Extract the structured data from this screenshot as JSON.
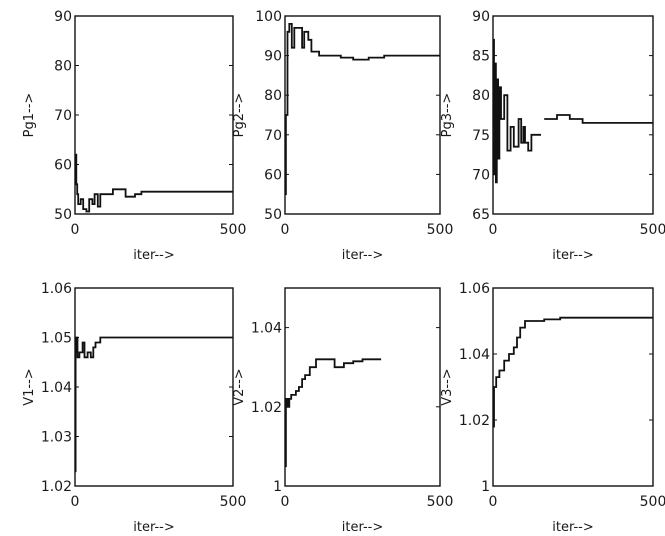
{
  "chart_data": [
    {
      "type": "line",
      "xlabel": "iter-->",
      "ylabel": "Pg1-->",
      "xlim": [
        0,
        500
      ],
      "ylim": [
        50,
        90
      ],
      "xticks": [
        0,
        500
      ],
      "yticks": [
        50,
        60,
        70,
        80,
        90
      ],
      "xtick_labels": [
        "0",
        "500"
      ],
      "ytick_labels": [
        "50",
        "60",
        "70",
        "80",
        "90"
      ],
      "grid": false,
      "series": [
        {
          "values": [
            [
              0,
              60
            ],
            [
              2,
              60
            ],
            [
              2,
              62
            ],
            [
              4,
              62
            ],
            [
              4,
              56
            ],
            [
              7,
              56
            ],
            [
              7,
              54
            ],
            [
              10,
              54
            ],
            [
              10,
              52
            ],
            [
              18,
              52
            ],
            [
              18,
              53
            ],
            [
              26,
              53
            ],
            [
              26,
              51
            ],
            [
              36,
              51
            ],
            [
              36,
              50.5
            ],
            [
              45,
              50.5
            ],
            [
              45,
              53
            ],
            [
              55,
              53
            ],
            [
              55,
              52
            ],
            [
              62,
              52
            ],
            [
              62,
              54
            ],
            [
              72,
              54
            ],
            [
              72,
              51.5
            ],
            [
              80,
              51.5
            ],
            [
              80,
              54
            ],
            [
              120,
              54
            ],
            [
              120,
              55
            ],
            [
              160,
              55
            ],
            [
              160,
              53.5
            ],
            [
              190,
              53.5
            ],
            [
              190,
              54
            ],
            [
              210,
              54
            ],
            [
              210,
              54.5
            ],
            [
              500,
              54.5
            ]
          ]
        }
      ]
    },
    {
      "type": "line",
      "xlabel": "iter-->",
      "ylabel": "Pg2-->",
      "xlim": [
        0,
        500
      ],
      "ylim": [
        50,
        100
      ],
      "xticks": [
        0,
        500
      ],
      "yticks": [
        50,
        60,
        70,
        80,
        90,
        100
      ],
      "xtick_labels": [
        "0",
        "500"
      ],
      "ytick_labels": [
        "50",
        "60",
        "70",
        "80",
        "90",
        "100"
      ],
      "grid": false,
      "series": [
        {
          "values": [
            [
              0,
              55
            ],
            [
              3,
              55
            ],
            [
              3,
              75
            ],
            [
              8,
              75
            ],
            [
              8,
              96
            ],
            [
              14,
              96
            ],
            [
              14,
              98
            ],
            [
              22,
              98
            ],
            [
              22,
              92
            ],
            [
              30,
              92
            ],
            [
              30,
              97
            ],
            [
              55,
              97
            ],
            [
              55,
              92
            ],
            [
              62,
              92
            ],
            [
              62,
              96
            ],
            [
              75,
              96
            ],
            [
              75,
              94
            ],
            [
              85,
              94
            ],
            [
              85,
              91
            ],
            [
              110,
              91
            ],
            [
              110,
              90
            ],
            [
              180,
              90
            ],
            [
              180,
              89.5
            ],
            [
              220,
              89.5
            ],
            [
              220,
              89
            ],
            [
              270,
              89
            ],
            [
              270,
              89.5
            ],
            [
              320,
              89.5
            ],
            [
              320,
              90
            ],
            [
              500,
              90
            ]
          ]
        }
      ]
    },
    {
      "type": "line",
      "xlabel": "iter-->",
      "ylabel": "Pg3-->",
      "xlim": [
        0,
        500
      ],
      "ylim": [
        65,
        90
      ],
      "xticks": [
        0,
        500
      ],
      "yticks": [
        65,
        70,
        75,
        80,
        85,
        90
      ],
      "xtick_labels": [
        "0",
        "500"
      ],
      "ytick_labels": [
        "65",
        "70",
        "75",
        "80",
        "85",
        "90"
      ],
      "grid": false,
      "series": [
        {
          "values": [
            [
              0,
              87
            ],
            [
              3,
              87
            ],
            [
              3,
              70
            ],
            [
              6,
              70
            ],
            [
              6,
              84
            ],
            [
              9,
              84
            ],
            [
              9,
              69
            ],
            [
              12,
              69
            ],
            [
              12,
              82
            ],
            [
              16,
              82
            ],
            [
              16,
              72
            ],
            [
              20,
              72
            ],
            [
              20,
              81
            ],
            [
              25,
              81
            ],
            [
              25,
              77
            ],
            [
              35,
              77
            ],
            [
              35,
              80
            ],
            [
              45,
              80
            ],
            [
              45,
              73
            ],
            [
              55,
              73
            ],
            [
              55,
              76
            ],
            [
              65,
              76
            ],
            [
              65,
              73.5
            ],
            [
              80,
              73.5
            ],
            [
              80,
              77
            ],
            [
              88,
              77
            ],
            [
              88,
              74
            ],
            [
              95,
              74
            ],
            [
              95,
              76
            ],
            [
              100,
              76
            ],
            [
              100,
              74
            ],
            [
              110,
              74
            ],
            [
              110,
              73
            ],
            [
              120,
              73
            ],
            [
              120,
              75
            ],
            [
              150,
              75
            ]
          ]
        },
        {
          "values": [
            [
              160,
              77
            ],
            [
              200,
              77
            ],
            [
              200,
              77.5
            ],
            [
              240,
              77.5
            ],
            [
              240,
              77
            ],
            [
              280,
              77
            ],
            [
              280,
              76.5
            ],
            [
              500,
              76.5
            ]
          ]
        }
      ]
    },
    {
      "type": "line",
      "xlabel": "iter-->",
      "ylabel": "V1-->",
      "xlim": [
        0,
        500
      ],
      "ylim": [
        1.02,
        1.06
      ],
      "xticks": [
        0,
        500
      ],
      "yticks": [
        1.02,
        1.03,
        1.04,
        1.05,
        1.06
      ],
      "xtick_labels": [
        "0",
        "500"
      ],
      "ytick_labels": [
        "1.02",
        "1.03",
        "1.04",
        "1.05",
        "1.06"
      ],
      "grid": false,
      "series": [
        {
          "values": [
            [
              0,
              1.023
            ],
            [
              2,
              1.023
            ],
            [
              2,
              1.047
            ],
            [
              4,
              1.047
            ],
            [
              4,
              1.05
            ],
            [
              8,
              1.05
            ],
            [
              8,
              1.046
            ],
            [
              14,
              1.046
            ],
            [
              14,
              1.047
            ],
            [
              24,
              1.047
            ],
            [
              24,
              1.049
            ],
            [
              30,
              1.049
            ],
            [
              30,
              1.046
            ],
            [
              40,
              1.046
            ],
            [
              40,
              1.047
            ],
            [
              50,
              1.047
            ],
            [
              50,
              1.046
            ],
            [
              58,
              1.046
            ],
            [
              58,
              1.048
            ],
            [
              65,
              1.048
            ],
            [
              65,
              1.049
            ],
            [
              80,
              1.049
            ],
            [
              80,
              1.05
            ],
            [
              500,
              1.05
            ]
          ]
        }
      ]
    },
    {
      "type": "line",
      "xlabel": "iter-->",
      "ylabel": "V2-->",
      "xlim": [
        0,
        500
      ],
      "ylim": [
        1,
        1.05
      ],
      "xticks": [
        0,
        500
      ],
      "yticks": [
        1,
        1.02,
        1.04
      ],
      "xtick_labels": [
        "0",
        "500"
      ],
      "ytick_labels": [
        "1",
        "1.02",
        "1.04"
      ],
      "grid": false,
      "series": [
        {
          "values": [
            [
              0,
              1.005
            ],
            [
              3,
              1.005
            ],
            [
              3,
              1.022
            ],
            [
              8,
              1.022
            ],
            [
              8,
              1.02
            ],
            [
              14,
              1.02
            ],
            [
              14,
              1.022
            ],
            [
              20,
              1.022
            ],
            [
              20,
              1.023
            ],
            [
              35,
              1.023
            ],
            [
              35,
              1.024
            ],
            [
              45,
              1.024
            ],
            [
              45,
              1.025
            ],
            [
              55,
              1.025
            ],
            [
              55,
              1.027
            ],
            [
              65,
              1.027
            ],
            [
              65,
              1.028
            ],
            [
              80,
              1.028
            ],
            [
              80,
              1.03
            ],
            [
              100,
              1.03
            ],
            [
              100,
              1.032
            ],
            [
              160,
              1.032
            ],
            [
              160,
              1.03
            ],
            [
              190,
              1.03
            ],
            [
              190,
              1.031
            ],
            [
              220,
              1.031
            ],
            [
              220,
              1.0315
            ],
            [
              250,
              1.0315
            ],
            [
              250,
              1.032
            ],
            [
              310,
              1.032
            ]
          ]
        }
      ]
    },
    {
      "type": "line",
      "xlabel": "iter-->",
      "ylabel": "V3-->",
      "xlim": [
        0,
        500
      ],
      "ylim": [
        1,
        1.06
      ],
      "xticks": [
        0,
        500
      ],
      "yticks": [
        1,
        1.02,
        1.04,
        1.06
      ],
      "xtick_labels": [
        "0",
        "500"
      ],
      "ytick_labels": [
        "1",
        "1.02",
        "1.04",
        "1.06"
      ],
      "grid": false,
      "series": [
        {
          "values": [
            [
              0,
              1.018
            ],
            [
              3,
              1.018
            ],
            [
              3,
              1.03
            ],
            [
              10,
              1.03
            ],
            [
              10,
              1.033
            ],
            [
              20,
              1.033
            ],
            [
              20,
              1.035
            ],
            [
              35,
              1.035
            ],
            [
              35,
              1.038
            ],
            [
              50,
              1.038
            ],
            [
              50,
              1.04
            ],
            [
              65,
              1.04
            ],
            [
              65,
              1.042
            ],
            [
              75,
              1.042
            ],
            [
              75,
              1.045
            ],
            [
              85,
              1.045
            ],
            [
              85,
              1.048
            ],
            [
              100,
              1.048
            ],
            [
              100,
              1.05
            ],
            [
              160,
              1.05
            ],
            [
              160,
              1.0505
            ],
            [
              210,
              1.0505
            ],
            [
              210,
              1.051
            ],
            [
              500,
              1.051
            ]
          ]
        }
      ]
    }
  ]
}
